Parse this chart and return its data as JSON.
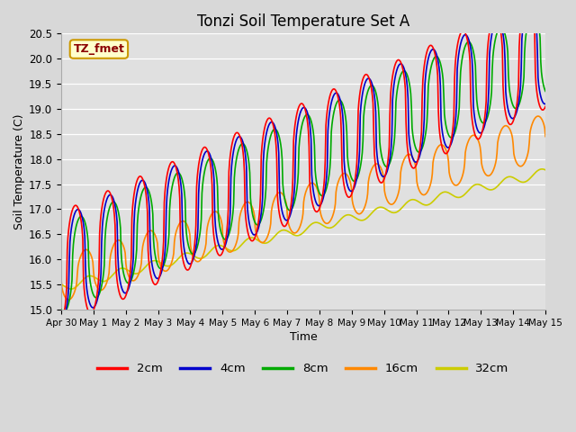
{
  "title": "Tonzi Soil Temperature Set A",
  "xlabel": "Time",
  "ylabel": "Soil Temperature (C)",
  "ylim": [
    15.0,
    20.5
  ],
  "fig_bg_color": "#d8d8d8",
  "plot_bg_color": "#e0e0e0",
  "label_box_text": "TZ_fmet",
  "label_box_color": "#ffffcc",
  "label_box_border": "#cc9900",
  "series_colors": [
    "#ff0000",
    "#0000cc",
    "#00aa00",
    "#ff8800",
    "#cccc00"
  ],
  "series_labels": [
    "2cm",
    "4cm",
    "8cm",
    "16cm",
    "32cm"
  ],
  "linewidth": 1.2,
  "x_tick_labels": [
    "Apr 30",
    "May 1",
    "May 2",
    "May 3",
    "May 4",
    "May 5",
    "May 6",
    "May 7",
    "May 8",
    "May 9",
    "May 10",
    "May 11",
    "May 12",
    "May 13",
    "May 14",
    "May 15"
  ],
  "yticks": [
    15.0,
    15.5,
    16.0,
    16.5,
    17.0,
    17.5,
    18.0,
    18.5,
    19.0,
    19.5,
    20.0,
    20.5
  ],
  "n_points": 720
}
